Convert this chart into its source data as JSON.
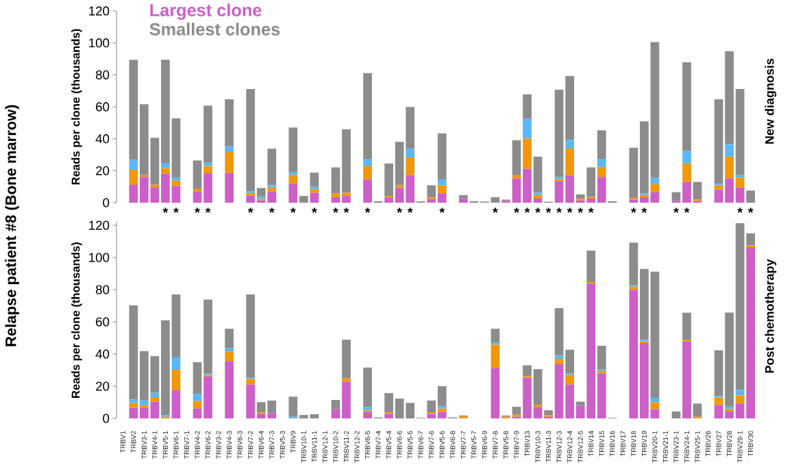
{
  "chart_data": [
    {
      "type": "bar",
      "stacked": true,
      "y2label": "New diagnosis",
      "ylabel": "Reads per clone (thousands)",
      "ylim": [
        0,
        120
      ],
      "yticks": [
        0,
        20,
        40,
        60,
        80,
        100,
        120
      ],
      "tick_labels": "y",
      "legend": "top left",
      "categories": [
        "TRBV1",
        "TRBV2",
        "TRBV3-1",
        "TRBV4-1",
        "TRBV5-1",
        "TRBV6-1",
        "TRBV7-1",
        "TRBV4-2",
        "TRBV6-2",
        "TRBV3-2",
        "TRBV4-3",
        "TRBV6-3",
        "TRBV7-2",
        "TRBV6-4",
        "TRBV7-3",
        "TRBV5-3",
        "TRBV9",
        "TRBV10-1",
        "TRBV11-1",
        "TRBV12-1",
        "TRBV10-2",
        "TRBV11-2",
        "TRBV12-2",
        "TRBV6-5",
        "TRBV7-4",
        "TRBV5-4",
        "TRBV6-6",
        "TRBV5-5",
        "TRBV6-7",
        "TRBV7-6",
        "TRBV5-6",
        "TRBV6-8",
        "TRBV7-7",
        "TRBV5-7",
        "TRBV6-9",
        "TRBV7-8",
        "TRBV5-8",
        "TRBV7-9",
        "TRBV13",
        "TRBV10-3",
        "TRBV11-3",
        "TRBV12-3",
        "TRBV12-4",
        "TRBV12-5",
        "TRBV14",
        "TRBV15",
        "TRBV16",
        "TRBV17",
        "TRBV18",
        "TRBV19",
        "TRBV20-1",
        "TRBV21-1",
        "TRBV23-1",
        "TRBV24-1",
        "TRBV25-1",
        "TRBV26",
        "TRBV27",
        "TRBV28",
        "TRBV29-1",
        "TRBV30"
      ],
      "series": [
        {
          "name": "Largest clone",
          "color": "#cc5fc8",
          "values": [
            0,
            11.2,
            16.2,
            9.5,
            18.1,
            10.5,
            0,
            6.9,
            18.4,
            0,
            18.5,
            0,
            4.4,
            1.4,
            6.9,
            0,
            11.9,
            0,
            6.2,
            0,
            3.4,
            4.2,
            0,
            14.5,
            0,
            3,
            9.2,
            17.3,
            0,
            2.3,
            5.9,
            0,
            2.3,
            0,
            0,
            0,
            1,
            15.2,
            21.2,
            2.6,
            0,
            13.3,
            17.1,
            1.4,
            2.6,
            16.2,
            0,
            0,
            1.9,
            3.4,
            6.6,
            0,
            1.1,
            13,
            1,
            0,
            8,
            15.2,
            9.5,
            0
          ]
        },
        {
          "color": "#f0980a",
          "values": [
            0,
            9.4,
            1,
            1.7,
            3.5,
            3.3,
            0,
            1.7,
            4.6,
            0,
            13.2,
            0,
            1.7,
            1,
            2.6,
            0,
            5.4,
            0,
            2.3,
            0,
            2.4,
            2,
            0,
            8.6,
            0,
            1,
            1.7,
            11,
            0,
            1,
            5,
            0,
            0,
            0,
            0,
            0,
            0,
            2,
            18.9,
            2.2,
            0,
            1.4,
            16.8,
            1,
            1,
            6.2,
            0,
            0,
            1,
            1.4,
            5,
            0,
            0,
            11.5,
            1,
            0,
            2.9,
            13.6,
            6.2,
            0
          ]
        },
        {
          "color": "#5bb8f8",
          "values": [
            0,
            6.3,
            0,
            0,
            3.3,
            2,
            0,
            0,
            2,
            0,
            3.6,
            0,
            1,
            1.5,
            1.5,
            0,
            2,
            0,
            1.5,
            0,
            0,
            0,
            0,
            4.3,
            0,
            0,
            0,
            5.4,
            0,
            0,
            3.6,
            0,
            0,
            0,
            0,
            0,
            0,
            0,
            12.3,
            1.5,
            0,
            1.5,
            5.3,
            0,
            0,
            5,
            0,
            0,
            0,
            1,
            3.9,
            0,
            0,
            7.9,
            0,
            0,
            1,
            7.9,
            1.5,
            0
          ]
        },
        {
          "name": "Smallest clones",
          "color": "#8c8c8c",
          "values": [
            0,
            62.6,
            44.4,
            29.4,
            64.6,
            37,
            0,
            17.8,
            35.8,
            0,
            29.4,
            0,
            64,
            5.3,
            22.8,
            0,
            27.7,
            4.2,
            8.8,
            0,
            16.3,
            39.8,
            0,
            53.7,
            0.9,
            20.5,
            27.2,
            26.2,
            0.8,
            7.6,
            28.9,
            0,
            2.4,
            0.9,
            0.7,
            3.4,
            0.9,
            21.9,
            15.4,
            22.5,
            0.6,
            54.5,
            40.1,
            2.8,
            18.5,
            17.9,
            0.9,
            0,
            31.5,
            45.1,
            85,
            0,
            5.5,
            55.5,
            11,
            0,
            52.8,
            58.1,
            53.9,
            7.6
          ]
        }
      ],
      "annotations": [
        "Relapse patient #8 (Bone marrow)",
        {
          "text": "*",
          "x": "TRBV5-1",
          "y": 0
        },
        {
          "text": "*",
          "x": "TRBV6-1",
          "y": 0
        },
        {
          "text": "*",
          "x": "TRBV4-2",
          "y": 0
        },
        {
          "text": "*",
          "x": "TRBV6-2",
          "y": 0
        },
        {
          "text": "*",
          "x": "TRBV7-2",
          "y": 0
        },
        {
          "text": "*",
          "x": "TRBV7-3",
          "y": 0
        },
        {
          "text": "*",
          "x": "TRBV9",
          "y": 0
        },
        {
          "text": "*",
          "x": "TRBV11-1",
          "y": 0
        },
        {
          "text": "*",
          "x": "TRBV10-2",
          "y": 0
        },
        {
          "text": "*",
          "x": "TRBV11-2",
          "y": 0
        },
        {
          "text": "*",
          "x": "TRBV6-5",
          "y": 0
        },
        {
          "text": "*",
          "x": "TRBV6-6",
          "y": 0
        },
        {
          "text": "*",
          "x": "TRBV5-5",
          "y": 0
        },
        {
          "text": "*",
          "x": "TRBV5-6",
          "y": 0
        },
        {
          "text": "*",
          "x": "TRBV7-8",
          "y": 0
        },
        {
          "text": "*",
          "x": "TRBV7-9",
          "y": 0
        },
        {
          "text": "*",
          "x": "TRBV13",
          "y": 0
        },
        {
          "text": "*",
          "x": "TRBV10-3",
          "y": 0
        },
        {
          "text": "*",
          "x": "TRBV11-3",
          "y": 0
        },
        {
          "text": "*",
          "x": "TRBV12-3",
          "y": 0
        },
        {
          "text": "*",
          "x": "TRBV12-4",
          "y": 0
        },
        {
          "text": "*",
          "x": "TRBV12-5",
          "y": 0
        },
        {
          "text": "*",
          "x": "TRBV14",
          "y": 0
        },
        {
          "text": "*",
          "x": "TRBV18",
          "y": 0
        },
        {
          "text": "*",
          "x": "TRBV19",
          "y": 0
        },
        {
          "text": "*",
          "x": "TRBV23-1",
          "y": 0
        },
        {
          "text": "*",
          "x": "TRBV24-1",
          "y": 0
        },
        {
          "text": "*",
          "x": "TRBV29-1",
          "y": 0
        },
        {
          "text": "*",
          "x": "TRBV30",
          "y": 0
        }
      ]
    },
    {
      "type": "bar",
      "stacked": true,
      "y2label": "Post chemotherapy",
      "ylabel": "Reads per clone (thousands)",
      "ylim": [
        0,
        122
      ],
      "yticks": [
        0,
        20,
        40,
        60,
        80,
        100,
        120
      ],
      "categories": [
        "TRBV1",
        "TRBV2",
        "TRBV3-1",
        "TRBV4-1",
        "TRBV5-1",
        "TRBV6-1",
        "TRBV7-1",
        "TRBV4-2",
        "TRBV6-2",
        "TRBV3-2",
        "TRBV4-3",
        "TRBV6-3",
        "TRBV7-2",
        "TRBV6-4",
        "TRBV7-3",
        "TRBV5-3",
        "TRBV9",
        "TRBV10-1",
        "TRBV11-1",
        "TRBV12-1",
        "TRBV10-2",
        "TRBV11-2",
        "TRBV12-2",
        "TRBV6-5",
        "TRBV7-4",
        "TRBV5-4",
        "TRBV6-6",
        "TRBV5-5",
        "TRBV6-7",
        "TRBV7-6",
        "TRBV5-6",
        "TRBV6-8",
        "TRBV7-7",
        "TRBV5-7",
        "TRBV6-9",
        "TRBV7-8",
        "TRBV5-8",
        "TRBV7-9",
        "TRBV13",
        "TRBV10-3",
        "TRBV11-3",
        "TRBV12-3",
        "TRBV12-4",
        "TRBV12-5",
        "TRBV14",
        "TRBV15",
        "TRBV16",
        "TRBV17",
        "TRBV18",
        "TRBV19",
        "TRBV20-1",
        "TRBV21-1",
        "TRBV23-1",
        "TRBV24-1",
        "TRBV25-1",
        "TRBV26",
        "TRBV27",
        "TRBV28",
        "TRBV29-1",
        "TRBV30"
      ],
      "series": [
        {
          "color": "#cc5fc8",
          "values": [
            0,
            6.5,
            6.7,
            10.4,
            0,
            17.4,
            0,
            6.1,
            26,
            0,
            35.6,
            0,
            21,
            2.6,
            3.3,
            0,
            0,
            0,
            0,
            0,
            5.7,
            22.8,
            0,
            4,
            0,
            2.8,
            0,
            0,
            0,
            2.8,
            4,
            0,
            0,
            0,
            0,
            31.3,
            0,
            1,
            25.2,
            7.1,
            1,
            33.6,
            21,
            7.8,
            83.7,
            27.9,
            0,
            0,
            79.9,
            46.8,
            5.7,
            0,
            0,
            47.7,
            0,
            0,
            8.2,
            4.3,
            8.9,
            106.4
          ]
        },
        {
          "color": "#f0980a",
          "values": [
            0,
            3,
            1.5,
            2.8,
            1,
            12.8,
            0,
            4.7,
            1,
            0,
            6,
            0,
            3.5,
            1,
            0,
            0,
            0,
            0,
            0,
            0,
            0,
            2,
            0,
            1,
            0,
            1,
            0,
            0,
            0,
            1,
            2.1,
            0,
            1.2,
            0,
            0,
            14.5,
            1,
            1.3,
            1,
            1.4,
            1,
            3.4,
            6,
            0,
            1,
            1.7,
            0,
            0,
            2.1,
            1,
            4.3,
            0,
            0,
            1,
            1,
            0,
            4.7,
            1.5,
            5.4,
            1
          ]
        },
        {
          "color": "#5bb8f8",
          "values": [
            0,
            2.3,
            3,
            2.8,
            1,
            7.7,
            0,
            4.5,
            1,
            0,
            2,
            0,
            1,
            0,
            0,
            0,
            1,
            0,
            0,
            0,
            0,
            0,
            0,
            2,
            0,
            0,
            0,
            0,
            0,
            0,
            1.5,
            0,
            0,
            0,
            0,
            1.4,
            0,
            0,
            0,
            0,
            0,
            2,
            1,
            0,
            0,
            1,
            0,
            0,
            1,
            1,
            2.8,
            0,
            0,
            0,
            0,
            0,
            1,
            1.5,
            3.4,
            0
          ]
        },
        {
          "color": "#8c8c8c",
          "values": [
            0,
            58.4,
            30.6,
            22.7,
            59,
            39.1,
            0,
            19.6,
            45.8,
            0,
            12.1,
            0,
            51.5,
            6.5,
            7.8,
            0,
            12.5,
            2.1,
            2.6,
            0,
            5.8,
            24.1,
            0,
            24.6,
            0.6,
            11.9,
            12.3,
            9.6,
            0.4,
            7.3,
            12.4,
            0.6,
            0.6,
            0,
            0,
            8.5,
            0.8,
            4.9,
            6.8,
            22.1,
            3,
            29.5,
            14.7,
            2.6,
            19.6,
            14.5,
            0.4,
            0,
            26.2,
            44.1,
            78.4,
            0,
            4.3,
            17,
            8.2,
            0,
            28.4,
            58.4,
            103.6,
            7.6
          ]
        }
      ]
    }
  ]
}
